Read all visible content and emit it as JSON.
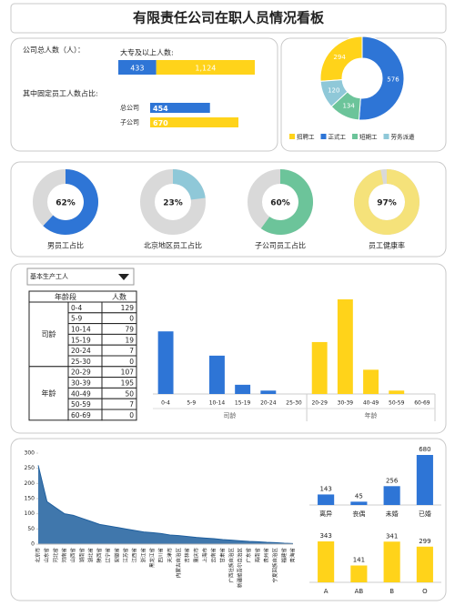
{
  "title": "有限责任公司在职人员情况看板",
  "chart_data": [
    {
      "type": "bar",
      "orientation": "horizontal",
      "stacked": true,
      "title": "公司总人数（人）：",
      "subtitle": "大专及以上人数:",
      "values": [
        433,
        1124
      ],
      "value_labels": [
        "433",
        "1,124"
      ],
      "colors": [
        "#2e75d6",
        "#ffd31a"
      ]
    },
    {
      "type": "bar",
      "orientation": "horizontal",
      "title": "其中固定员工人数占比:",
      "categories": [
        "总公司",
        "子公司"
      ],
      "values": [
        454,
        670
      ],
      "colors": [
        "#2e75d6",
        "#ffd31a"
      ]
    },
    {
      "type": "pie",
      "categories": [
        "招聘工",
        "正式工",
        "短期工",
        "劳务派遣"
      ],
      "values": [
        294,
        576,
        134,
        120
      ],
      "colors": [
        "#ffd31a",
        "#2e75d6",
        "#6cc49a",
        "#8fc8d8"
      ],
      "legend": "bottom"
    },
    {
      "type": "donut",
      "title": "男员工占比",
      "values": [
        62
      ],
      "value_labels": [
        "62%"
      ],
      "color": "#2e75d6"
    },
    {
      "type": "donut",
      "title": "北京地区员工占比",
      "values": [
        23
      ],
      "value_labels": [
        "23%"
      ],
      "color": "#8fc8d8"
    },
    {
      "type": "donut",
      "title": "子公司员工占比",
      "values": [
        60
      ],
      "value_labels": [
        "60%"
      ],
      "color": "#6cc49a"
    },
    {
      "type": "donut",
      "title": "员工健康率",
      "values": [
        97
      ],
      "value_labels": [
        "97%"
      ],
      "color": "#f5e27a"
    },
    {
      "type": "bar",
      "selector": "基本生产工人",
      "table_header": [
        "年龄段",
        "人数"
      ],
      "groups": [
        {
          "name": "司龄",
          "color": "#2e75d6",
          "categories": [
            "0-4",
            "5-9",
            "10-14",
            "15-19",
            "20-24",
            "25-30"
          ],
          "values": [
            129,
            0,
            79,
            19,
            7,
            0
          ]
        },
        {
          "name": "年龄",
          "color": "#ffd31a",
          "categories": [
            "20-29",
            "30-39",
            "40-49",
            "50-59",
            "60-69"
          ],
          "values": [
            107,
            195,
            50,
            7,
            0
          ]
        }
      ]
    },
    {
      "type": "area",
      "color": "#1f5f9e",
      "categories": [
        "北京市",
        "山东省",
        "河北省",
        "河南省",
        "山西省",
        "湖南省",
        "湖北省",
        "陕西省",
        "辽宁省",
        "安徽省",
        "江苏省",
        "江西省",
        "浙江省",
        "黑龙江省",
        "四川省",
        "天津市",
        "内蒙古自治区",
        "吉林省",
        "重庆市",
        "上海市",
        "云南省",
        "甘肃省",
        "广西壮族自治区",
        "新疆维吾尔自治区",
        "广东省",
        "海南省",
        "贵州省",
        "宁夏回族自治区",
        "福建省",
        "青海省"
      ],
      "values": [
        260,
        140,
        120,
        100,
        95,
        85,
        75,
        65,
        60,
        55,
        50,
        45,
        40,
        38,
        35,
        30,
        28,
        25,
        22,
        20,
        18,
        15,
        13,
        11,
        9,
        8,
        6,
        5,
        3,
        2
      ],
      "ylim": [
        0,
        300
      ],
      "yticks": [
        0,
        50,
        100,
        150,
        200,
        250,
        300
      ]
    },
    {
      "type": "bar",
      "categories": [
        "离异",
        "丧偶",
        "未婚",
        "已婚"
      ],
      "values": [
        143,
        45,
        256,
        680
      ],
      "color": "#2e75d6"
    },
    {
      "type": "bar",
      "categories": [
        "A",
        "AB",
        "B",
        "O"
      ],
      "values": [
        343,
        141,
        341,
        299
      ],
      "color": "#ffd31a"
    }
  ]
}
